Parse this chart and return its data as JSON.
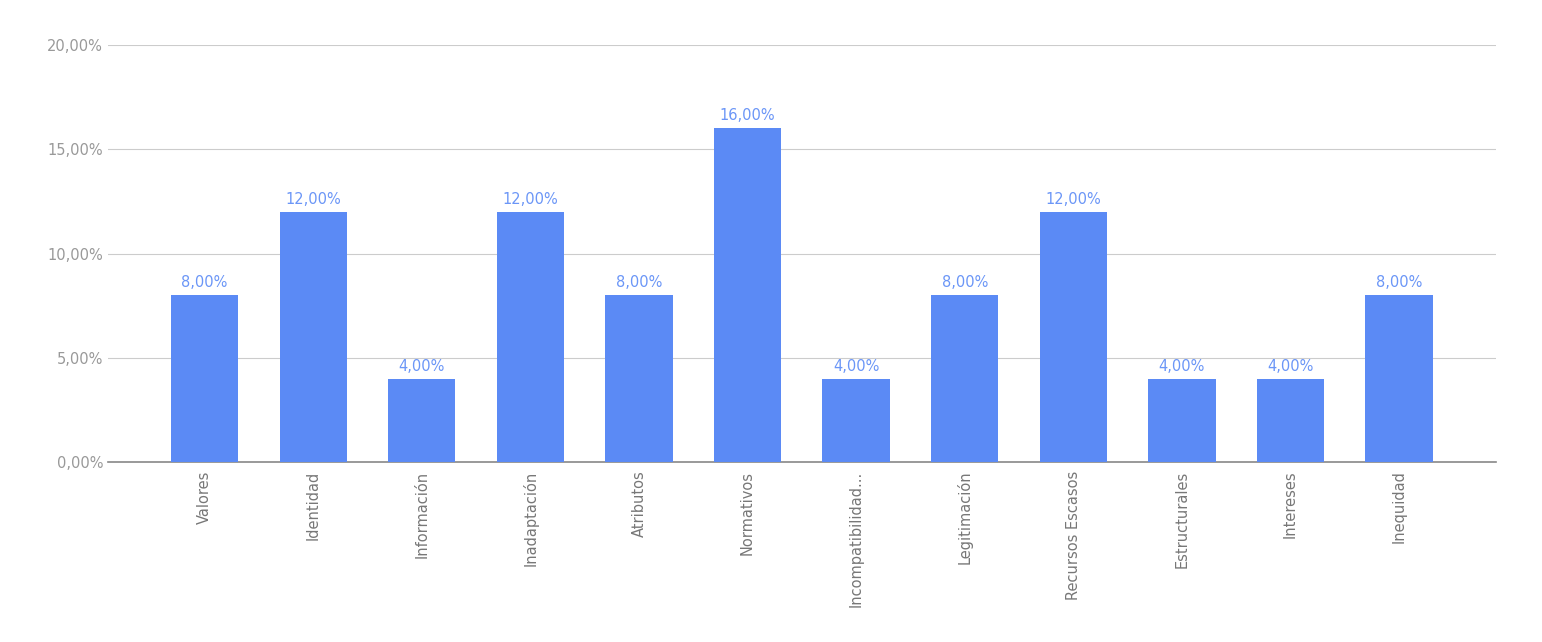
{
  "categories": [
    "Valores",
    "Identidad",
    "Información",
    "Inadaptación",
    "Atributos",
    "Normativos",
    "Incompatibilidad...",
    "Legitimación",
    "Recursos Escasos",
    "Estructurales",
    "Intereses",
    "Inequidad"
  ],
  "values": [
    8.0,
    12.0,
    4.0,
    12.0,
    8.0,
    16.0,
    4.0,
    8.0,
    12.0,
    4.0,
    4.0,
    8.0
  ],
  "bar_color": "#5B8AF5",
  "label_color": "#6B96F7",
  "label_fontsize": 10.5,
  "ylim": [
    0,
    20
  ],
  "yticks": [
    0,
    5,
    10,
    15,
    20
  ],
  "ytick_labels": [
    "0,00%",
    "5,00%",
    "10,00%",
    "15,00%",
    "20,00%"
  ],
  "background_color": "#ffffff",
  "grid_color": "#cccccc",
  "axis_color": "#888888",
  "tick_label_color": "#999999",
  "xtick_label_color": "#777777",
  "bar_width": 0.62
}
